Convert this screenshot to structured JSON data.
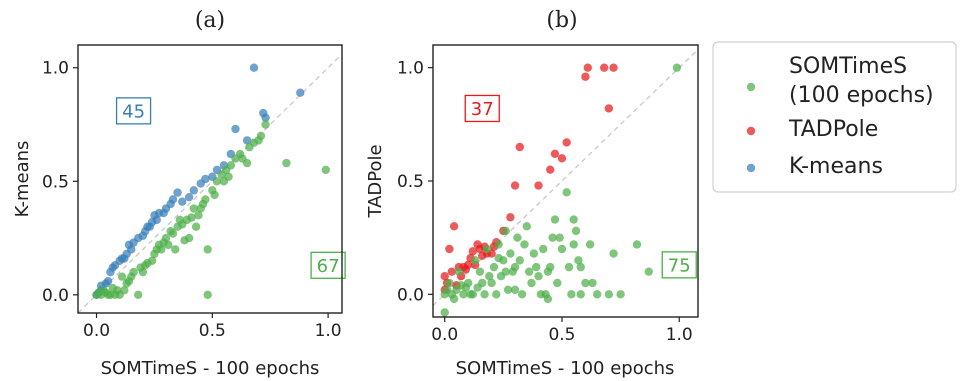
{
  "colors": {
    "somtimes": "#4daf4a",
    "tadpole": "#e41a1c",
    "kmeans": "#377eb8",
    "diagonal": "#c8c8c8"
  },
  "legend": {
    "entries": [
      {
        "lines": [
          "SOMTimeS",
          "(100 epochs)"
        ],
        "color": "#4daf4a"
      },
      {
        "lines": [
          "TADPole"
        ],
        "color": "#e41a1c"
      },
      {
        "lines": [
          "K-means"
        ],
        "color": "#377eb8"
      }
    ]
  },
  "chart_data": [
    {
      "type": "scatter",
      "panel_label": "(a)",
      "title": "",
      "xlabel": "SOMTimeS - 100 epochs",
      "ylabel": "K-means",
      "xlim": [
        -0.08,
        1.06
      ],
      "ylim": [
        -0.08,
        1.1
      ],
      "xticks": [
        0.0,
        0.5,
        1.0
      ],
      "xtick_labels": [
        "0.0",
        "0.5",
        "1.0"
      ],
      "yticks": [
        0.0,
        0.5,
        1.0
      ],
      "ytick_labels": [
        "0.0",
        "0.5",
        "1.0"
      ],
      "diagonal": true,
      "grid": false,
      "counts": [
        {
          "text": "45",
          "color": "#377eb8",
          "x": 0.16,
          "y": 0.81
        },
        {
          "text": "67",
          "color": "#4daf4a",
          "x": 1.0,
          "y": 0.13
        }
      ],
      "series": [
        {
          "name": "K-means",
          "color": "#377eb8",
          "points": [
            [
              0.0,
              0.0
            ],
            [
              0.01,
              0.01
            ],
            [
              0.02,
              0.02
            ],
            [
              0.02,
              0.04
            ],
            [
              0.04,
              0.05
            ],
            [
              0.05,
              0.06
            ],
            [
              0.06,
              0.1
            ],
            [
              0.08,
              0.13
            ],
            [
              0.1,
              0.15
            ],
            [
              0.12,
              0.16
            ],
            [
              0.13,
              0.18
            ],
            [
              0.14,
              0.22
            ],
            [
              0.16,
              0.23
            ],
            [
              0.18,
              0.25
            ],
            [
              0.2,
              0.26
            ],
            [
              0.21,
              0.28
            ],
            [
              0.23,
              0.3
            ],
            [
              0.24,
              0.32
            ],
            [
              0.25,
              0.35
            ],
            [
              0.27,
              0.36
            ],
            [
              0.3,
              0.38
            ],
            [
              0.32,
              0.4
            ],
            [
              0.33,
              0.42
            ],
            [
              0.35,
              0.45
            ],
            [
              0.37,
              0.41
            ],
            [
              0.4,
              0.43
            ],
            [
              0.42,
              0.46
            ],
            [
              0.45,
              0.49
            ],
            [
              0.47,
              0.51
            ],
            [
              0.5,
              0.52
            ],
            [
              0.52,
              0.55
            ],
            [
              0.55,
              0.57
            ],
            [
              0.58,
              0.62
            ],
            [
              0.6,
              0.73
            ],
            [
              0.65,
              0.68
            ],
            [
              0.68,
              1.0
            ],
            [
              0.72,
              0.8
            ],
            [
              0.73,
              0.78
            ],
            [
              0.88,
              0.89
            ],
            [
              0.22,
              0.3
            ],
            [
              0.26,
              0.33
            ],
            [
              0.29,
              0.36
            ],
            [
              0.15,
              0.2
            ],
            [
              0.11,
              0.16
            ],
            [
              0.07,
              0.12
            ]
          ]
        },
        {
          "name": "SOMTimeS",
          "color": "#4daf4a",
          "points": [
            [
              0.0,
              0.0
            ],
            [
              0.01,
              0.01
            ],
            [
              0.03,
              0.02
            ],
            [
              0.05,
              0.0
            ],
            [
              0.06,
              0.0
            ],
            [
              0.08,
              0.0
            ],
            [
              0.1,
              0.0
            ],
            [
              0.12,
              0.02
            ],
            [
              0.13,
              0.05
            ],
            [
              0.15,
              0.08
            ],
            [
              0.18,
              0.0
            ],
            [
              0.2,
              0.1
            ],
            [
              0.22,
              0.14
            ],
            [
              0.25,
              0.18
            ],
            [
              0.27,
              0.22
            ],
            [
              0.3,
              0.25
            ],
            [
              0.32,
              0.28
            ],
            [
              0.34,
              0.2
            ],
            [
              0.36,
              0.33
            ],
            [
              0.38,
              0.24
            ],
            [
              0.4,
              0.25
            ],
            [
              0.42,
              0.38
            ],
            [
              0.44,
              0.35
            ],
            [
              0.47,
              0.42
            ],
            [
              0.48,
              0.2
            ],
            [
              0.5,
              0.46
            ],
            [
              0.52,
              0.5
            ],
            [
              0.54,
              0.53
            ],
            [
              0.56,
              0.55
            ],
            [
              0.58,
              0.57
            ],
            [
              0.6,
              0.6
            ],
            [
              0.65,
              0.58
            ],
            [
              0.7,
              0.68
            ],
            [
              0.73,
              0.75
            ],
            [
              0.82,
              0.58
            ],
            [
              0.99,
              0.55
            ],
            [
              0.48,
              0.0
            ],
            [
              0.09,
              0.02
            ],
            [
              0.14,
              0.06
            ],
            [
              0.24,
              0.15
            ],
            [
              0.31,
              0.22
            ],
            [
              0.43,
              0.3
            ],
            [
              0.55,
              0.5
            ],
            [
              0.62,
              0.62
            ],
            [
              0.68,
              0.67
            ],
            [
              0.19,
              0.12
            ],
            [
              0.28,
              0.2
            ],
            [
              0.35,
              0.3
            ],
            [
              0.41,
              0.34
            ],
            [
              0.46,
              0.4
            ],
            [
              0.02,
              0.0
            ],
            [
              0.04,
              0.01
            ],
            [
              0.07,
              0.03
            ],
            [
              0.11,
              0.08
            ],
            [
              0.16,
              0.1
            ],
            [
              0.21,
              0.13
            ],
            [
              0.26,
              0.2
            ],
            [
              0.29,
              0.23
            ],
            [
              0.33,
              0.27
            ],
            [
              0.37,
              0.31
            ],
            [
              0.39,
              0.33
            ],
            [
              0.45,
              0.38
            ],
            [
              0.51,
              0.44
            ],
            [
              0.57,
              0.52
            ],
            [
              0.63,
              0.6
            ],
            [
              0.66,
              0.65
            ],
            [
              0.71,
              0.7
            ]
          ]
        }
      ]
    },
    {
      "type": "scatter",
      "panel_label": "(b)",
      "title": "",
      "xlabel": "SOMTimeS - 100 epochs",
      "ylabel": "TADPole",
      "xlim": [
        -0.05,
        1.08
      ],
      "ylim": [
        -0.1,
        1.1
      ],
      "xticks": [
        0.0,
        0.5,
        1.0
      ],
      "xtick_labels": [
        "0.0",
        "0.5",
        "1.0"
      ],
      "yticks": [
        0.0,
        0.5,
        1.0
      ],
      "ytick_labels": [
        "0.0",
        "0.5",
        "1.0"
      ],
      "diagonal": true,
      "grid": false,
      "counts": [
        {
          "text": "37",
          "color": "#e41a1c",
          "x": 0.16,
          "y": 0.82
        },
        {
          "text": "75",
          "color": "#4daf4a",
          "x": 1.0,
          "y": 0.13
        }
      ],
      "series": [
        {
          "name": "TADPole",
          "color": "#e41a1c",
          "points": [
            [
              0.0,
              0.02
            ],
            [
              0.0,
              0.08
            ],
            [
              0.01,
              0.05
            ],
            [
              0.02,
              0.2
            ],
            [
              0.03,
              0.1
            ],
            [
              0.04,
              0.3
            ],
            [
              0.05,
              0.04
            ],
            [
              0.06,
              0.12
            ],
            [
              0.07,
              0.08
            ],
            [
              0.08,
              0.12
            ],
            [
              0.1,
              0.13
            ],
            [
              0.11,
              0.16
            ],
            [
              0.12,
              0.19
            ],
            [
              0.13,
              0.13
            ],
            [
              0.14,
              0.22
            ],
            [
              0.15,
              0.2
            ],
            [
              0.17,
              0.21
            ],
            [
              0.18,
              0.18
            ],
            [
              0.2,
              0.18
            ],
            [
              0.22,
              0.23
            ],
            [
              0.25,
              0.28
            ],
            [
              0.28,
              0.34
            ],
            [
              0.3,
              0.48
            ],
            [
              0.32,
              0.65
            ],
            [
              0.4,
              0.48
            ],
            [
              0.45,
              0.55
            ],
            [
              0.47,
              0.62
            ],
            [
              0.5,
              0.6
            ],
            [
              0.52,
              0.67
            ],
            [
              0.6,
              0.96
            ],
            [
              0.61,
              1.0
            ],
            [
              0.68,
              1.0
            ],
            [
              0.7,
              0.82
            ],
            [
              0.72,
              1.0
            ],
            [
              0.09,
              0.11
            ],
            [
              0.16,
              0.17
            ],
            [
              0.21,
              0.21
            ]
          ]
        },
        {
          "name": "SOMTimeS",
          "color": "#4daf4a",
          "points": [
            [
              0.0,
              0.0
            ],
            [
              0.0,
              -0.08
            ],
            [
              0.01,
              0.02
            ],
            [
              0.02,
              0.05
            ],
            [
              0.03,
              0.0
            ],
            [
              0.05,
              0.02
            ],
            [
              0.06,
              0.1
            ],
            [
              0.08,
              0.0
            ],
            [
              0.1,
              0.05
            ],
            [
              0.12,
              0.0
            ],
            [
              0.13,
              0.15
            ],
            [
              0.14,
              0.03
            ],
            [
              0.15,
              0.1
            ],
            [
              0.17,
              0.0
            ],
            [
              0.18,
              0.2
            ],
            [
              0.2,
              0.05
            ],
            [
              0.21,
              0.12
            ],
            [
              0.22,
              0.0
            ],
            [
              0.23,
              0.22
            ],
            [
              0.24,
              0.08
            ],
            [
              0.25,
              0.15
            ],
            [
              0.26,
              0.28
            ],
            [
              0.27,
              0.02
            ],
            [
              0.28,
              0.18
            ],
            [
              0.29,
              0.1
            ],
            [
              0.3,
              0.12
            ],
            [
              0.31,
              0.25
            ],
            [
              0.32,
              0.15
            ],
            [
              0.33,
              0.0
            ],
            [
              0.34,
              0.22
            ],
            [
              0.35,
              0.3
            ],
            [
              0.36,
              0.1
            ],
            [
              0.38,
              0.18
            ],
            [
              0.4,
              0.08
            ],
            [
              0.42,
              0.2
            ],
            [
              0.43,
              0.0
            ],
            [
              0.44,
              -0.02
            ],
            [
              0.45,
              0.12
            ],
            [
              0.46,
              0.25
            ],
            [
              0.47,
              0.33
            ],
            [
              0.48,
              0.05
            ],
            [
              0.5,
              0.2
            ],
            [
              0.52,
              0.45
            ],
            [
              0.53,
              0.12
            ],
            [
              0.55,
              0.33
            ],
            [
              0.56,
              0.28
            ],
            [
              0.57,
              0.15
            ],
            [
              0.58,
              0.0
            ],
            [
              0.6,
              0.05
            ],
            [
              0.62,
              0.22
            ],
            [
              0.65,
              0.0
            ],
            [
              0.7,
              0.0
            ],
            [
              0.75,
              0.0
            ],
            [
              0.82,
              0.22
            ],
            [
              0.87,
              0.1
            ],
            [
              0.99,
              1.0
            ],
            [
              0.55,
              0.22
            ],
            [
              0.44,
              0.1
            ],
            [
              0.37,
              0.05
            ],
            [
              0.19,
              0.08
            ],
            [
              0.11,
              0.0
            ],
            [
              0.07,
              0.04
            ],
            [
              0.04,
              -0.02
            ],
            [
              0.16,
              0.05
            ],
            [
              0.26,
              0.1
            ],
            [
              0.3,
              0.02
            ],
            [
              0.39,
              0.12
            ],
            [
              0.41,
              0.0
            ],
            [
              0.49,
              0.25
            ],
            [
              0.54,
              0.0
            ],
            [
              0.58,
              0.12
            ],
            [
              0.63,
              0.05
            ],
            [
              0.72,
              0.18
            ],
            [
              0.09,
              0.03
            ],
            [
              0.23,
              0.16
            ]
          ]
        }
      ]
    }
  ]
}
